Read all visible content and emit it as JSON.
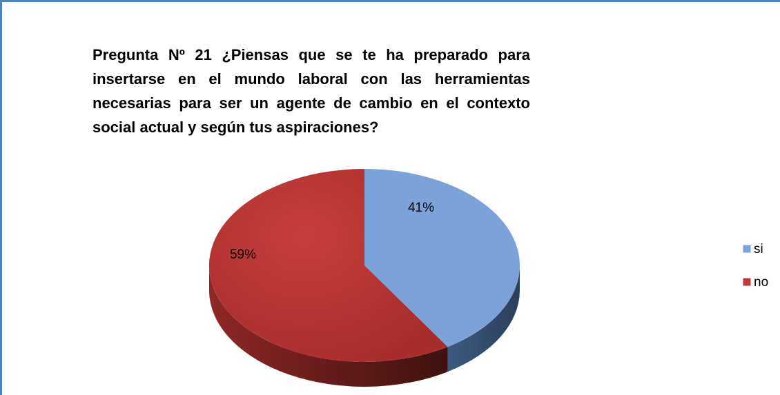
{
  "chart_data": {
    "type": "pie",
    "title": "Pregunta Nº  21  ¿Piensas que se te ha preparado para insertarse en el mundo laboral con las herramientas  necesarias para ser un agente de cambio en  el contexto social actual y según tus aspiraciones?",
    "categories": [
      "si",
      "no"
    ],
    "values": [
      41,
      59
    ],
    "value_labels": [
      "41%",
      "59%"
    ],
    "colors": [
      "#7ba3da",
      "#c0393b"
    ],
    "legend": "right"
  }
}
